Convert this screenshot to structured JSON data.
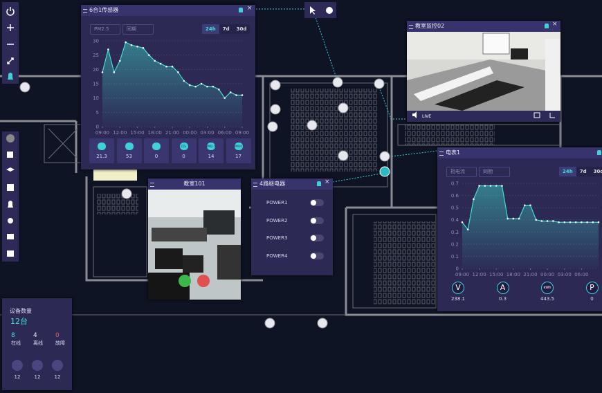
{
  "sensor_panel": {
    "title": "6合1传感器",
    "filters": [
      "PM2.5",
      "同期"
    ],
    "ranges": [
      "24h",
      "7d",
      "30d"
    ],
    "stats": [
      {
        "value": 21.3
      },
      {
        "value": 53
      },
      {
        "value": 0
      },
      {
        "value": 0,
        "icon": "CO₂"
      },
      {
        "value": 14,
        "icon": "PM2.5"
      },
      {
        "value": 17,
        "icon": "PM10"
      }
    ]
  },
  "camera_panel": {
    "title": "教室监控02",
    "status": "LIVE"
  },
  "meter_panel": {
    "title": "电表1",
    "filters": [
      "相电流",
      "同期"
    ],
    "ranges": [
      "24h",
      "7d",
      "30d"
    ],
    "stats": [
      {
        "icon": "V",
        "value": 238.1
      },
      {
        "icon": "A",
        "value": 0.3
      },
      {
        "icon": "kWh",
        "value": 443.5
      },
      {
        "icon": "P",
        "value": 0
      }
    ]
  },
  "video_panel": {
    "title": "教室101"
  },
  "relay_panel": {
    "title": "4路继电器",
    "channels": [
      "POWER1",
      "POWER2",
      "POWER3",
      "POWER4"
    ]
  },
  "device_panel": {
    "title": "设备数量",
    "total": "12台",
    "counts": [
      {
        "value": 8,
        "label": "在线"
      },
      {
        "value": 4,
        "label": "离线"
      },
      {
        "value": 0,
        "label": "故障"
      }
    ],
    "types": [
      12,
      12,
      12
    ]
  },
  "chart_data": [
    {
      "type": "line",
      "color": "#3fe0d0",
      "x": [
        0,
        1,
        2,
        3,
        4,
        5,
        6,
        7,
        8,
        9,
        10,
        11,
        12,
        13,
        14,
        15,
        16,
        17,
        18,
        19,
        20,
        21,
        22,
        23,
        24
      ],
      "values": [
        19,
        27,
        19,
        23,
        29.5,
        28.5,
        28,
        27.5,
        25,
        23,
        22,
        21,
        21,
        19,
        16,
        14.5,
        14,
        15,
        14,
        14,
        13,
        10,
        12,
        11,
        11
      ],
      "xlim": [
        0,
        24
      ],
      "ylim": [
        0,
        30
      ],
      "yticks": [
        0,
        5,
        10,
        15,
        20,
        25,
        30
      ],
      "xticks": [
        {
          "value": 0,
          "label": "09:00"
        },
        {
          "value": 3,
          "label": "12:00"
        },
        {
          "value": 6,
          "label": "15:00"
        },
        {
          "value": 9,
          "label": "18:00"
        },
        {
          "value": 12,
          "label": "21:00"
        },
        {
          "value": 15,
          "label": "00:00"
        },
        {
          "value": 18,
          "label": "03:00"
        },
        {
          "value": 21,
          "label": "06:00"
        },
        {
          "value": 24,
          "label": "09:00"
        }
      ],
      "grid": true
    },
    {
      "type": "line",
      "color": "#3fe0d0",
      "x": [
        0,
        1,
        2,
        3,
        4,
        5,
        6,
        7,
        8,
        9,
        10,
        11,
        12,
        13,
        14,
        15,
        16,
        17,
        18,
        19,
        20,
        21,
        22,
        23,
        24
      ],
      "values": [
        0.38,
        0.32,
        0.57,
        0.68,
        0.68,
        0.68,
        0.68,
        0.68,
        0.41,
        0.41,
        0.41,
        0.52,
        0.52,
        0.4,
        0.39,
        0.39,
        0.39,
        0.38,
        0.38,
        0.38,
        0.38,
        0.38,
        0.38,
        0.38,
        0.38
      ],
      "xlim": [
        0,
        24
      ],
      "ylim": [
        0,
        0.7
      ],
      "yticks": [
        0,
        0.1,
        0.2,
        0.3,
        0.4,
        0.5,
        0.6,
        0.7
      ],
      "xticks": [
        {
          "value": 0,
          "label": "09:00"
        },
        {
          "value": 3,
          "label": "12:00"
        },
        {
          "value": 6,
          "label": "15:00"
        },
        {
          "value": 9,
          "label": "18:00"
        },
        {
          "value": 12,
          "label": "21:00"
        },
        {
          "value": 15,
          "label": "00:00"
        },
        {
          "value": 18,
          "label": "03:00"
        },
        {
          "value": 21,
          "label": "06:00"
        }
      ],
      "grid": true
    }
  ]
}
